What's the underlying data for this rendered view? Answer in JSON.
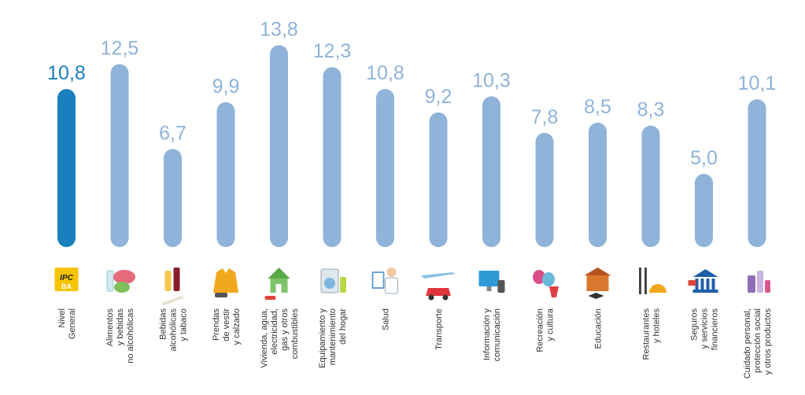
{
  "chart_data": {
    "type": "bar",
    "title": "",
    "xlabel": "",
    "ylabel": "",
    "categories": [
      [
        "Nivel",
        "General"
      ],
      [
        "Alimentos",
        "y bebidas",
        "no alcohólicas"
      ],
      [
        "Bebidas",
        "alcohólicas",
        "y tabaco"
      ],
      [
        "Prendas",
        "de vestir",
        "y calzado"
      ],
      [
        "Vivienda, agua,",
        "electricidad,",
        "gas y otros",
        "combustibles"
      ],
      [
        "Equipamiento y",
        "mantenimiento",
        "del hogar"
      ],
      [
        "Salud"
      ],
      [
        "Transporte"
      ],
      [
        "Información y",
        "comunicación"
      ],
      [
        "Recreación",
        "y cultura"
      ],
      [
        "Educación"
      ],
      [
        "Restaurantes",
        "y hoteles"
      ],
      [
        "Seguros",
        "y servicios",
        "financieros"
      ],
      [
        "Cuidado personal,",
        "protección social",
        "y otros productos"
      ]
    ],
    "values": [
      10.8,
      12.5,
      6.7,
      9.9,
      13.8,
      12.3,
      10.8,
      9.2,
      10.3,
      7.8,
      8.5,
      8.3,
      5.0,
      10.1
    ],
    "value_labels": [
      "10,8",
      "12,5",
      "6,7",
      "9,9",
      "13,8",
      "12,3",
      "10,8",
      "9,2",
      "10,3",
      "7,8",
      "8,5",
      "8,3",
      "5,0",
      "10,1"
    ],
    "highlight_index": 0,
    "colors": {
      "highlight": "#1a7fbf",
      "bar": "#8fb3d9"
    },
    "icons": [
      "ipc-ba-logo-icon",
      "food-meat-vegetables-icon",
      "wine-bottles-cigarette-icon",
      "jacket-sneaker-icon",
      "house-paint-roller-icon",
      "washing-machine-appliances-icon",
      "doctor-clipboard-icon",
      "airplane-car-icon",
      "computer-phone-icon",
      "theater-masks-popcorn-icon",
      "school-graduation-cap-icon",
      "cutlery-cloche-icon",
      "bank-building-cards-icon",
      "personal-care-products-icon"
    ],
    "logo_text": [
      "IPC",
      "BA"
    ],
    "grid": false,
    "legend": "none"
  }
}
